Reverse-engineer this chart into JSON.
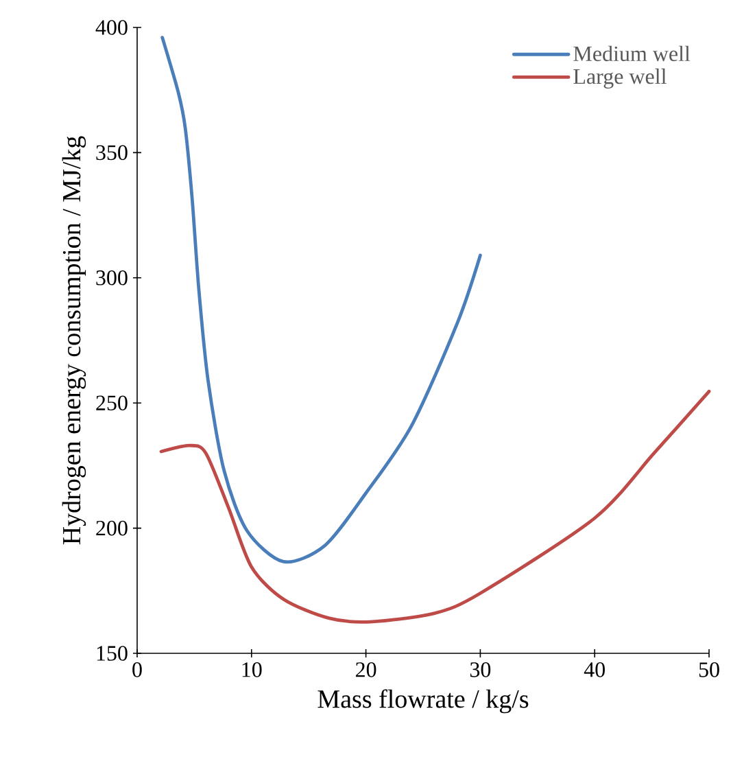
{
  "chart_data": {
    "type": "line",
    "xlabel": "Mass flowrate / kg/s",
    "ylabel": "Hydrogen energy consumption / MJ/kg",
    "xlim": [
      0,
      50
    ],
    "ylim": [
      150,
      400
    ],
    "xticks": [
      0,
      10,
      20,
      30,
      40,
      50
    ],
    "yticks": [
      150,
      200,
      250,
      300,
      350,
      400
    ],
    "grid": false,
    "legend": "top right",
    "marker": "none",
    "line_style": "solid",
    "series": [
      {
        "name": "Medium well",
        "color": "#4a7ebb",
        "x": [
          2.2,
          3.6,
          4.2,
          4.8,
          5.4,
          6.2,
          7.6,
          9.6,
          12.8,
          16.4,
          20,
          24,
          28,
          30
        ],
        "values": [
          396,
          374,
          360,
          332,
          295,
          259,
          223,
          199,
          186.6,
          193,
          214,
          241,
          282,
          309
        ]
      },
      {
        "name": "Large well",
        "color": "#be4b48",
        "x": [
          2.1,
          4.6,
          6,
          8,
          10,
          12.8,
          16.8,
          20.4,
          26,
          30,
          40,
          45.2,
          50
        ],
        "values": [
          230.6,
          233,
          230,
          208,
          184.5,
          171.6,
          164,
          162.6,
          166,
          174,
          204,
          230,
          254.6
        ]
      }
    ]
  }
}
